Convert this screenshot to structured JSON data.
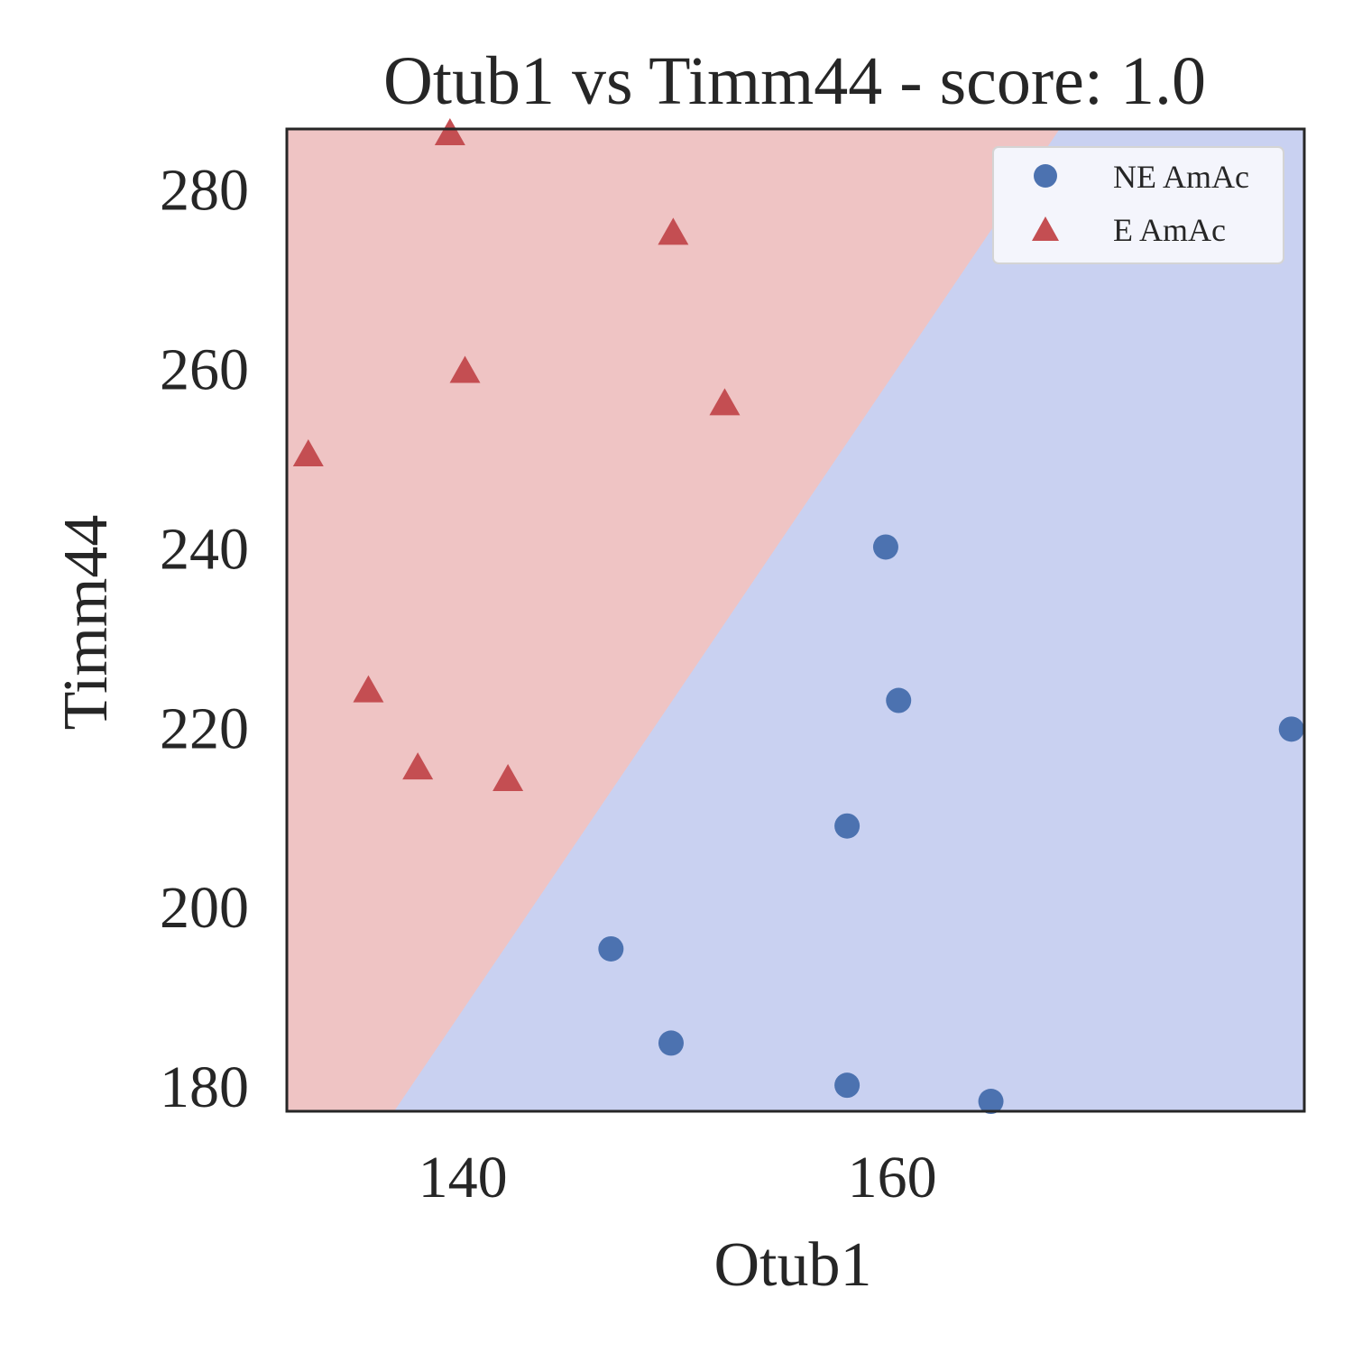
{
  "chart_data": {
    "type": "scatter",
    "title": "Otub1 vs Timm44 - score: 1.0",
    "xlabel": "Otub1",
    "ylabel": "Timm44",
    "xlim": [
      131.8,
      179.2
    ],
    "ylim": [
      177.3,
      286.8
    ],
    "xticks": [
      140,
      160
    ],
    "yticks": [
      180,
      200,
      220,
      240,
      260,
      280
    ],
    "grid": false,
    "legend_position": "top-right",
    "decision_boundary": {
      "description_points": [
        [
          136.8,
          177.3
        ],
        [
          167.8,
          286.8
        ]
      ],
      "region_colors": {
        "E AmAc": "#efc4c4",
        "NE AmAc": "#c9d1f1"
      }
    },
    "series": [
      {
        "name": "NE AmAc",
        "marker": "circle",
        "color": "#4c72b0",
        "points": [
          [
            159.7,
            240.2
          ],
          [
            160.3,
            223.1
          ],
          [
            178.6,
            219.9
          ],
          [
            157.9,
            209.1
          ],
          [
            146.9,
            195.4
          ],
          [
            149.7,
            184.9
          ],
          [
            157.9,
            180.2
          ],
          [
            164.6,
            178.4
          ]
        ]
      },
      {
        "name": "E AmAc",
        "marker": "triangle",
        "color": "#c44e52",
        "points": [
          [
            139.4,
            286.3
          ],
          [
            149.8,
            275.2
          ],
          [
            140.1,
            259.8
          ],
          [
            152.2,
            256.2
          ],
          [
            132.8,
            250.5
          ],
          [
            135.6,
            224.2
          ],
          [
            137.9,
            215.6
          ],
          [
            142.1,
            214.3
          ]
        ]
      }
    ]
  }
}
